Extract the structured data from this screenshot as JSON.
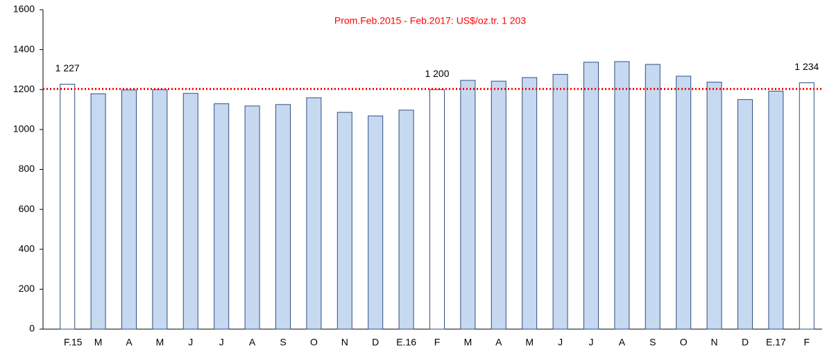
{
  "chart_data": {
    "type": "bar",
    "annotation": "Prom.Feb.2015 - Feb.2017: US$/oz.tr. 1 203",
    "average": 1203,
    "average_color": "#ff0000",
    "categories": [
      "F.15",
      "M",
      "A",
      "M",
      "J",
      "J",
      "A",
      "S",
      "O",
      "N",
      "D",
      "E.16",
      "F",
      "M",
      "A",
      "M",
      "J",
      "J",
      "A",
      "S",
      "O",
      "N",
      "D",
      "E.17",
      "F"
    ],
    "values": [
      1227,
      1179,
      1198,
      1199,
      1181,
      1129,
      1118,
      1125,
      1159,
      1086,
      1068,
      1097,
      1200,
      1246,
      1242,
      1260,
      1276,
      1337,
      1340,
      1326,
      1267,
      1237,
      1150,
      1192,
      1234
    ],
    "value_labels": [
      "1 227",
      null,
      null,
      null,
      null,
      null,
      null,
      null,
      null,
      null,
      null,
      null,
      "1 200",
      null,
      null,
      null,
      null,
      null,
      null,
      null,
      null,
      null,
      null,
      null,
      "1 234"
    ],
    "colors": [
      "#ffffff",
      "#c6d9f1",
      "#c6d9f1",
      "#c6d9f1",
      "#c6d9f1",
      "#c6d9f1",
      "#c6d9f1",
      "#c6d9f1",
      "#c6d9f1",
      "#c6d9f1",
      "#c6d9f1",
      "#c6d9f1",
      "#ffffff",
      "#c6d9f1",
      "#c6d9f1",
      "#c6d9f1",
      "#c6d9f1",
      "#c6d9f1",
      "#c6d9f1",
      "#c6d9f1",
      "#c6d9f1",
      "#c6d9f1",
      "#c6d9f1",
      "#c6d9f1",
      "#ffffff"
    ],
    "ylim": [
      0,
      1600
    ],
    "yticks": [
      0,
      200,
      400,
      600,
      800,
      1000,
      1200,
      1400,
      1600
    ]
  }
}
